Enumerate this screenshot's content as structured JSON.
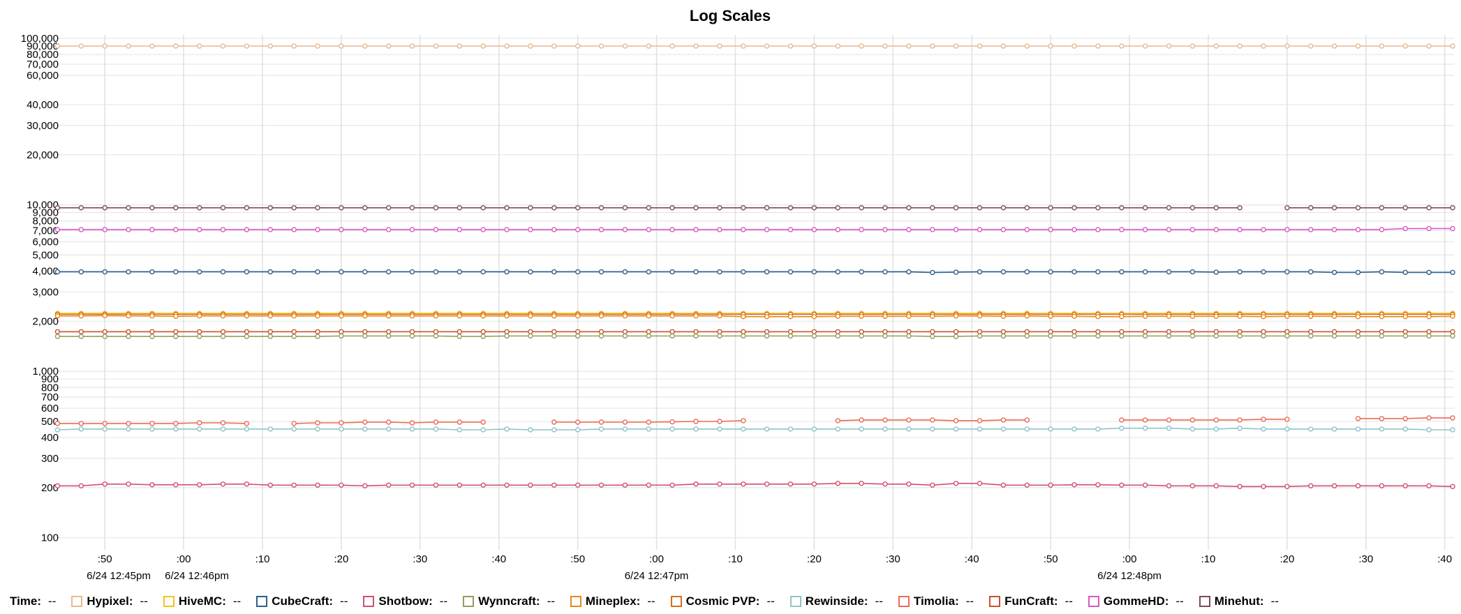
{
  "chart_data": {
    "type": "line",
    "title": "Log Scales",
    "y_scale": "log",
    "ylim": [
      95,
      105000
    ],
    "y_ticks": [
      100,
      200,
      300,
      400,
      500,
      600,
      700,
      800,
      900,
      1000,
      2000,
      3000,
      4000,
      5000,
      6000,
      7000,
      8000,
      9000,
      10000,
      20000,
      30000,
      40000,
      60000,
      70000,
      80000,
      90000,
      100000
    ],
    "y_tick_labels": [
      "100",
      "200",
      "300",
      "400",
      "500",
      "600",
      "700",
      "800",
      "900",
      "1,000",
      "2,000",
      "3,000",
      "4,000",
      "5,000",
      "6,000",
      "7,000",
      "8,000",
      "9,000",
      "10,000",
      "20,000",
      "30,000",
      "40,000",
      "60,000",
      "70,000",
      "80,000",
      "90,000",
      "100,000"
    ],
    "x_start": "2024-06-24T12:45:44",
    "x_interval_seconds": 3,
    "x_count": 60,
    "x_ticks": [
      {
        "t": "12:45:50",
        "label": ":50"
      },
      {
        "t": "12:46:00",
        "label": ":00"
      },
      {
        "t": "12:46:10",
        "label": ":10"
      },
      {
        "t": "12:46:20",
        "label": ":20"
      },
      {
        "t": "12:46:30",
        "label": ":30"
      },
      {
        "t": "12:46:40",
        "label": ":40"
      },
      {
        "t": "12:46:50",
        "label": ":50"
      },
      {
        "t": "12:47:00",
        "label": ":00"
      },
      {
        "t": "12:47:10",
        "label": ":10"
      },
      {
        "t": "12:47:20",
        "label": ":20"
      },
      {
        "t": "12:47:30",
        "label": ":30"
      },
      {
        "t": "12:47:40",
        "label": ":40"
      },
      {
        "t": "12:47:50",
        "label": ":50"
      },
      {
        "t": "12:48:00",
        "label": ":00"
      },
      {
        "t": "12:48:10",
        "label": ":10"
      },
      {
        "t": "12:48:20",
        "label": ":20"
      },
      {
        "t": "12:48:30",
        "label": ":30"
      },
      {
        "t": "12:48:40",
        "label": ":40"
      }
    ],
    "x_date_labels": [
      {
        "t": "12:45:44",
        "label": "6/24 12:45pm"
      },
      {
        "t": "12:46:00",
        "label": "6/24 12:46pm"
      },
      {
        "t": "12:47:00",
        "label": "6/24 12:47pm"
      },
      {
        "t": "12:48:00",
        "label": "6/24 12:48pm"
      }
    ],
    "grid": true,
    "legend": "bottom",
    "series": [
      {
        "name": "Hypixel",
        "color": "#e8b98f",
        "values": [
          90000,
          90000,
          90000,
          90000,
          90000,
          90000,
          90000,
          90000,
          90000,
          90000,
          90000,
          90000,
          90000,
          90000,
          90000,
          90000,
          90000,
          90000,
          90000,
          90000,
          90000,
          90000,
          90000,
          90000,
          90000,
          90000,
          90000,
          90000,
          90000,
          90000,
          90000,
          90000,
          90000,
          90000,
          90000,
          90000,
          90000,
          90000,
          90000,
          90000,
          90000,
          90000,
          90000,
          90000,
          90000,
          90000,
          90000,
          90000,
          90000,
          90000,
          90000,
          90000,
          90000,
          90000,
          90000,
          90000,
          90000,
          90000,
          90000,
          90000
        ]
      },
      {
        "name": "Minehut",
        "color": "#7b4b5d",
        "values": [
          9600,
          9600,
          9600,
          9600,
          9600,
          9600,
          9600,
          9600,
          9600,
          9600,
          9600,
          9600,
          9600,
          9600,
          9600,
          9600,
          9600,
          9600,
          9600,
          9600,
          9600,
          9600,
          9600,
          9600,
          9600,
          9600,
          9600,
          9600,
          9600,
          9600,
          9600,
          9600,
          9600,
          9600,
          9600,
          9600,
          9600,
          9600,
          9600,
          9600,
          9600,
          9600,
          9600,
          9600,
          9600,
          9600,
          9600,
          9600,
          9600,
          9600,
          9600,
          null,
          9600,
          9600,
          9600,
          9600,
          9600,
          9600,
          9600,
          9600
        ]
      },
      {
        "name": "GommeHD",
        "color": "#d957c6",
        "values": [
          7100,
          7100,
          7100,
          7100,
          7100,
          7100,
          7100,
          7100,
          7100,
          7100,
          7100,
          7100,
          7100,
          7100,
          7100,
          7100,
          7100,
          7100,
          7100,
          7100,
          7100,
          7100,
          7100,
          7100,
          7100,
          7100,
          7100,
          7100,
          7100,
          7100,
          7100,
          7100,
          7100,
          7100,
          7100,
          7100,
          7100,
          7100,
          7100,
          7100,
          7100,
          7100,
          7100,
          7100,
          7100,
          7100,
          7100,
          7100,
          7100,
          7100,
          7100,
          7100,
          7100,
          7100,
          7100,
          7100,
          7100,
          7200,
          7200,
          7200
        ]
      },
      {
        "name": "CubeCraft",
        "color": "#2a5f8f",
        "values": [
          3960,
          3960,
          3960,
          3960,
          3960,
          3960,
          3960,
          3960,
          3960,
          3960,
          3960,
          3960,
          3960,
          3960,
          3960,
          3960,
          3960,
          3960,
          3960,
          3960,
          3960,
          3960,
          3960,
          3960,
          3960,
          3960,
          3960,
          3960,
          3960,
          3960,
          3960,
          3960,
          3960,
          3960,
          3960,
          3960,
          3960,
          3920,
          3940,
          3960,
          3960,
          3960,
          3960,
          3960,
          3960,
          3960,
          3960,
          3960,
          3960,
          3940,
          3960,
          3960,
          3960,
          3960,
          3930,
          3930,
          3960,
          3930,
          3930,
          3930
        ]
      },
      {
        "name": "HiveMC",
        "color": "#f2c41e",
        "values": [
          2230,
          2230,
          2230,
          2230,
          2230,
          2230,
          2230,
          2230,
          2230,
          2230,
          2230,
          2230,
          2230,
          2230,
          2230,
          2230,
          2230,
          2230,
          2230,
          2230,
          2230,
          2230,
          2230,
          2230,
          2230,
          2230,
          2230,
          2230,
          2230,
          2230,
          2230,
          2230,
          2230,
          2230,
          2230,
          2230,
          2230,
          2230,
          2230,
          2230,
          2230,
          2230,
          2230,
          2230,
          2230,
          2230,
          2230,
          2230,
          2230,
          2230,
          2230,
          2230,
          2230,
          2230,
          2230,
          2230,
          2230,
          2230,
          2230,
          2230
        ]
      },
      {
        "name": "Cosmic PVP",
        "color": "#d8691f",
        "values": [
          2200,
          2200,
          2200,
          2200,
          2200,
          2200,
          2200,
          2200,
          2200,
          2200,
          2200,
          2200,
          2200,
          2200,
          2200,
          2200,
          2200,
          2200,
          2200,
          2200,
          2200,
          2200,
          2200,
          2200,
          2200,
          2200,
          2200,
          2200,
          2200,
          2200,
          2200,
          2200,
          2200,
          2200,
          2200,
          2200,
          2200,
          2200,
          2200,
          2200,
          2200,
          2200,
          2200,
          2200,
          2200,
          2200,
          2200,
          2200,
          2200,
          2200,
          2200,
          2200,
          2200,
          2200,
          2200,
          2200,
          2200,
          2200,
          2200,
          2200
        ]
      },
      {
        "name": "Mineplex",
        "color": "#e8871a",
        "values": [
          2150,
          2150,
          2160,
          2150,
          2150,
          2140,
          2150,
          2150,
          2150,
          2150,
          2150,
          2150,
          2150,
          2150,
          2150,
          2150,
          2150,
          2150,
          2150,
          2150,
          2150,
          2150,
          2150,
          2150,
          2150,
          2150,
          2150,
          2150,
          2150,
          2130,
          2130,
          2130,
          2130,
          2140,
          2140,
          2140,
          2140,
          2140,
          2150,
          2150,
          2140,
          2150,
          2140,
          2140,
          2130,
          2130,
          2140,
          2140,
          2140,
          2140,
          2140,
          2130,
          2140,
          2140,
          2140,
          2130,
          2130,
          2130,
          2130,
          2140
        ]
      },
      {
        "name": "FunCraft",
        "color": "#c5532e",
        "values": [
          1730,
          1730,
          1730,
          1730,
          1730,
          1730,
          1730,
          1730,
          1730,
          1730,
          1730,
          1730,
          1730,
          1730,
          1730,
          1730,
          1730,
          1730,
          1730,
          1730,
          1730,
          1730,
          1730,
          1730,
          1730,
          1730,
          1730,
          1730,
          1730,
          1730,
          1730,
          1730,
          1730,
          1730,
          1730,
          1730,
          1730,
          1730,
          1730,
          1730,
          1730,
          1730,
          1730,
          1730,
          1730,
          1730,
          1730,
          1730,
          1730,
          1730,
          1730,
          1730,
          1730,
          1730,
          1730,
          1730,
          1730,
          1730,
          1730,
          1730
        ]
      },
      {
        "name": "Wynncraft",
        "color": "#9a9a5c",
        "values": [
          1620,
          1620,
          1620,
          1620,
          1620,
          1620,
          1620,
          1620,
          1620,
          1620,
          1620,
          1620,
          1630,
          1630,
          1630,
          1630,
          1630,
          1620,
          1620,
          1630,
          1630,
          1630,
          1630,
          1630,
          1630,
          1630,
          1630,
          1630,
          1630,
          1630,
          1630,
          1630,
          1630,
          1630,
          1630,
          1630,
          1630,
          1620,
          1620,
          1630,
          1630,
          1630,
          1630,
          1630,
          1630,
          1630,
          1630,
          1630,
          1630,
          1630,
          1630,
          1630,
          1630,
          1630,
          1630,
          1630,
          1630,
          1630,
          1630,
          1630
        ]
      },
      {
        "name": "Timolia",
        "color": "#ea6b55",
        "values": [
          486,
          486,
          486,
          486,
          486,
          486,
          490,
          490,
          486,
          null,
          486,
          490,
          490,
          495,
          495,
          490,
          495,
          495,
          495,
          null,
          null,
          495,
          495,
          495,
          495,
          495,
          497,
          500,
          500,
          505,
          null,
          null,
          null,
          505,
          510,
          510,
          510,
          510,
          505,
          505,
          510,
          510,
          null,
          null,
          null,
          510,
          510,
          510,
          510,
          510,
          510,
          515,
          515,
          null,
          null,
          520,
          520,
          520,
          525,
          525
        ]
      },
      {
        "name": "Rewinside",
        "color": "#8fc4c8",
        "values": [
          445,
          450,
          450,
          450,
          450,
          450,
          450,
          450,
          450,
          450,
          450,
          450,
          450,
          450,
          450,
          450,
          450,
          445,
          445,
          450,
          445,
          445,
          445,
          450,
          450,
          450,
          450,
          450,
          450,
          450,
          450,
          450,
          450,
          450,
          450,
          450,
          450,
          450,
          450,
          450,
          450,
          450,
          450,
          450,
          450,
          455,
          455,
          455,
          450,
          450,
          455,
          450,
          450,
          450,
          450,
          450,
          450,
          450,
          445,
          445
        ]
      },
      {
        "name": "Shotbow",
        "color": "#d0506e",
        "values": [
          205,
          205,
          210,
          210,
          208,
          208,
          208,
          210,
          210,
          207,
          207,
          207,
          207,
          205,
          207,
          207,
          207,
          207,
          207,
          207,
          207,
          207,
          207,
          207,
          207,
          207,
          207,
          210,
          210,
          210,
          210,
          210,
          210,
          212,
          212,
          210,
          210,
          207,
          212,
          212,
          207,
          207,
          207,
          208,
          208,
          207,
          207,
          205,
          205,
          205,
          203,
          203,
          203,
          205,
          205,
          205,
          205,
          205,
          205,
          203
        ]
      }
    ]
  },
  "legend": {
    "time_label": "Time:",
    "time_value": "--",
    "items": [
      {
        "name": "Hypixel:",
        "value": "--",
        "color": "#e8b98f"
      },
      {
        "name": "HiveMC:",
        "value": "--",
        "color": "#f2c41e"
      },
      {
        "name": "CubeCraft:",
        "value": "--",
        "color": "#2a5f8f"
      },
      {
        "name": "Shotbow:",
        "value": "--",
        "color": "#d0506e"
      },
      {
        "name": "Wynncraft:",
        "value": "--",
        "color": "#9a9a5c"
      },
      {
        "name": "Mineplex:",
        "value": "--",
        "color": "#e8871a"
      },
      {
        "name": "Cosmic PVP:",
        "value": "--",
        "color": "#d8691f"
      },
      {
        "name": "Rewinside:",
        "value": "--",
        "color": "#8fc4c8"
      },
      {
        "name": "Timolia:",
        "value": "--",
        "color": "#ea6b55"
      },
      {
        "name": "FunCraft:",
        "value": "--",
        "color": "#c5532e"
      },
      {
        "name": "GommeHD:",
        "value": "--",
        "color": "#d957c6"
      },
      {
        "name": "Minehut:",
        "value": "--",
        "color": "#7b4b5d"
      }
    ]
  }
}
